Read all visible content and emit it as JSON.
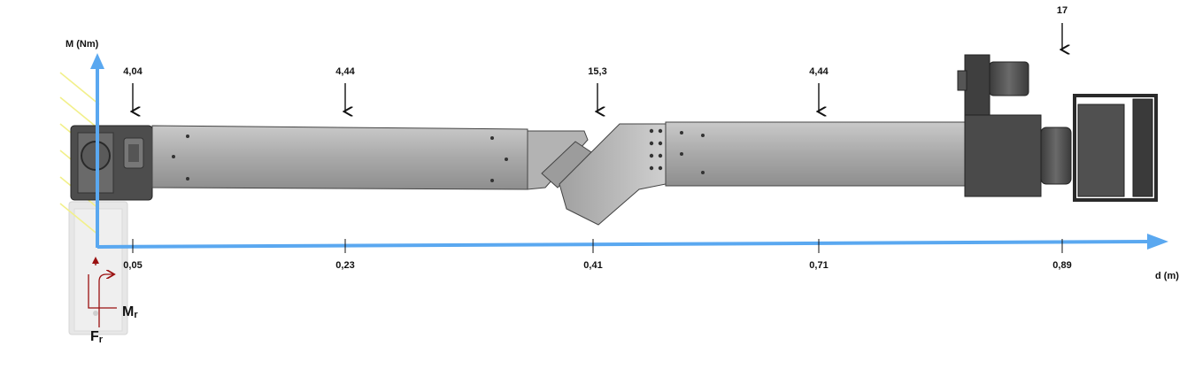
{
  "axes": {
    "y_label": "M (Nm)",
    "x_label": "d (m)",
    "color": "#5aa8f0"
  },
  "loads": [
    {
      "value": "4,04",
      "distance": "0,05"
    },
    {
      "value": "4,44",
      "distance": "0,23"
    },
    {
      "value": "15,3",
      "distance": "0,41"
    },
    {
      "value": "4,44",
      "distance": "0,71"
    },
    {
      "value": "17",
      "distance": "0,89"
    }
  ],
  "reactions": {
    "moment": {
      "main": "M",
      "sub": "r"
    },
    "force": {
      "main": "F",
      "sub": "r"
    },
    "color": "#9a1010"
  },
  "colors": {
    "arm": "#9a9a9a",
    "arm_dark": "#4a4a4a",
    "hatch": "#f2f08a"
  }
}
